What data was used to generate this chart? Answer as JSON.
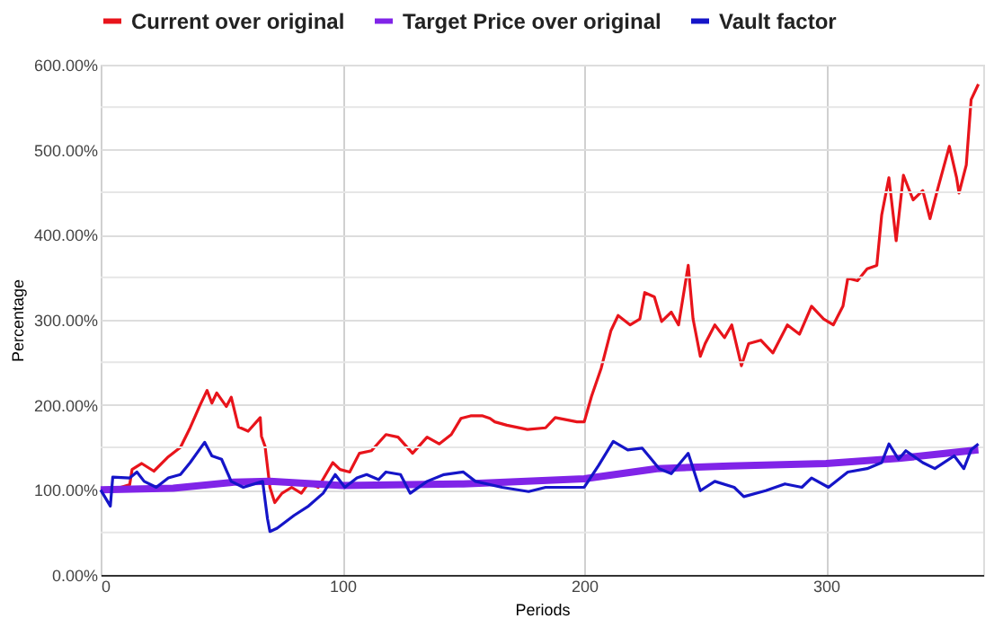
{
  "chart_data": {
    "type": "line",
    "xlabel": "Periods",
    "ylabel": "Percentage",
    "xlim": [
      0,
      365
    ],
    "xticks": [
      0,
      100,
      200,
      300
    ],
    "ylim": [
      0,
      600
    ],
    "yticks": [
      {
        "value": 0,
        "label": "0.00%"
      },
      {
        "value": 50,
        "label": null
      },
      {
        "value": 100,
        "label": "100.00%"
      },
      {
        "value": 150,
        "label": null
      },
      {
        "value": 200,
        "label": "200.00%"
      },
      {
        "value": 250,
        "label": null
      },
      {
        "value": 300,
        "label": "300.00%"
      },
      {
        "value": 350,
        "label": null
      },
      {
        "value": 400,
        "label": "400.00%"
      },
      {
        "value": 450,
        "label": null
      },
      {
        "value": 500,
        "label": "500.00%"
      },
      {
        "value": 550,
        "label": null
      },
      {
        "value": 600,
        "label": "600.00%"
      }
    ],
    "grid": true,
    "legend": "top",
    "marker": "none",
    "line_style": "solid",
    "series": [
      {
        "name": "Current over original",
        "color": "#e8141b",
        "x": [
          0,
          3,
          5,
          12,
          13,
          17,
          22,
          28,
          33,
          37,
          41,
          44,
          46,
          48,
          52,
          54,
          57,
          61,
          66,
          66.5,
          68,
          70,
          72,
          75,
          79,
          83,
          86,
          90,
          96,
          99,
          103,
          107,
          112,
          118,
          123,
          129,
          135,
          140,
          145,
          149,
          153,
          158,
          161,
          163,
          168,
          176.5,
          184,
          188,
          197,
          200,
          203,
          207,
          211,
          214,
          219,
          223,
          225,
          229,
          232,
          236,
          239,
          243,
          245,
          248,
          250,
          254,
          258,
          261,
          265,
          268,
          273,
          278,
          284,
          289,
          294,
          299,
          303,
          307,
          309,
          313,
          317,
          321,
          323,
          326,
          329,
          332,
          336,
          340,
          343,
          346,
          351,
          354,
          355,
          358,
          360,
          363
        ],
        "values": [
          100,
          102,
          100,
          106,
          124,
          131,
          122,
          139,
          150,
          173,
          199,
          217,
          202,
          214,
          198,
          209,
          174,
          169,
          185,
          163,
          151,
          103,
          85,
          96,
          103,
          96,
          108,
          103,
          132,
          124,
          121,
          143,
          146,
          165,
          162,
          143,
          162,
          154,
          165,
          184,
          187,
          187,
          184,
          180,
          176,
          171,
          173,
          185,
          180,
          180,
          210,
          243,
          287,
          305,
          294,
          301,
          332,
          327,
          298,
          309,
          294,
          364,
          301,
          257,
          272,
          294,
          279,
          294,
          246,
          272,
          276,
          261,
          294,
          283,
          316,
          301,
          294,
          316,
          349,
          346,
          360,
          364,
          423,
          467,
          393,
          470,
          441,
          452,
          419,
          452,
          504,
          467,
          449,
          482,
          559,
          577
        ]
      },
      {
        "name": "Target Price over original",
        "color": "#8024e8",
        "x": [
          0,
          30,
          55,
          70,
          100,
          150,
          200,
          230,
          260,
          300,
          330,
          363
        ],
        "values": [
          100,
          102,
          109,
          110,
          105,
          107,
          113,
          125,
          128,
          131,
          137,
          147
        ]
      },
      {
        "name": "Vault factor",
        "color": "#1515c8",
        "x": [
          0,
          4,
          5,
          12,
          15,
          18,
          23,
          28,
          33,
          37,
          43,
          46,
          50,
          54,
          59,
          67,
          69,
          70,
          73,
          80,
          86,
          92,
          97,
          101,
          106,
          110,
          115,
          118,
          124,
          128,
          135,
          142,
          150,
          155,
          166,
          177,
          184,
          200,
          206,
          212,
          218,
          224,
          231,
          236,
          243,
          248,
          254,
          262,
          266,
          275,
          283,
          290,
          294,
          301,
          309,
          317,
          323,
          326,
          330,
          333,
          340,
          345,
          353,
          357,
          360,
          363
        ],
        "values": [
          100,
          81,
          115,
          114,
          121,
          110,
          103,
          114,
          118,
          132,
          156,
          140,
          136,
          110,
          103,
          110,
          66,
          51,
          55,
          70,
          81,
          96,
          118,
          103,
          114,
          118,
          112,
          121,
          118,
          96,
          110,
          118,
          121,
          110,
          103,
          98,
          103,
          103,
          129,
          157,
          147,
          149,
          125,
          119,
          143,
          99,
          110,
          103,
          92,
          99,
          107,
          103,
          114,
          103,
          121,
          125,
          132,
          154,
          136,
          146,
          132,
          125,
          140,
          125,
          147,
          154
        ]
      }
    ]
  }
}
